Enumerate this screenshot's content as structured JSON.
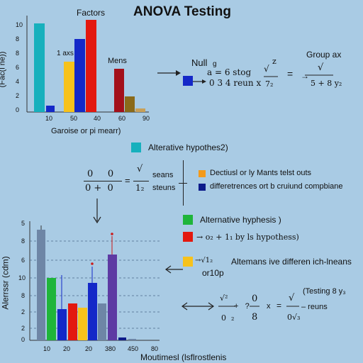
{
  "title": "ANOVA Testing",
  "colors": {
    "background": "#a9cbe4",
    "teal": "#17b0bd",
    "blue": "#1428c8",
    "navy": "#0d1b8a",
    "yellow": "#f7c21b",
    "red": "#e3180f",
    "dark_red": "#a3101a",
    "olive": "#8a6a1a",
    "green": "#1fb53a",
    "orange": "#f39a1b",
    "slate": "#6e86a6",
    "purple": "#5d3aa3",
    "navy_red": "#cc1a1a"
  },
  "top_chart": {
    "label_factors": "Factors",
    "label_axs": "1 axs",
    "label_mens": "Mens",
    "ylabel": "(Fac(l ne))",
    "xlabel": "Garoise or pi mearr)",
    "y_ticks": [
      "10",
      "8",
      "8",
      "6",
      "4",
      "2",
      "0"
    ],
    "x_ticks": [
      "10",
      "50",
      "40",
      "60",
      "90"
    ]
  },
  "top_right": {
    "null_label": "Null",
    "null_sub": "g",
    "group_label": "Group ax",
    "formula_left": "a  =  6  stog",
    "formula_left2": "0  3    4  reun  x",
    "frac_num": "z",
    "frac_den": "7₂",
    "right_num": "√",
    "right_den": "5  +  8  y₂",
    "arrow_eq": "="
  },
  "middle": {
    "alt_label": "Alterative hypothes2)",
    "frac_line1": "0     0",
    "frac_line2": "0 +  0",
    "eq": "=",
    "frac2_den": "1₂",
    "seans": "seans",
    "steuns": "steuns",
    "legend1": "Dectiusl or ly Mants telst outs",
    "legend2": "differetrences ort b cruiund compbiane"
  },
  "bottom_chart": {
    "ylabel": "Alerrssr (cdm)",
    "xlabel": "Moutimesl (lsflrostlenis",
    "y_ticks": [
      "5",
      "8",
      "6",
      "10",
      "8",
      "2",
      "2",
      "0"
    ],
    "x_ticks": [
      "10",
      "20",
      "20",
      "380",
      "450",
      "80"
    ]
  },
  "bottom_right": {
    "hyp_label": "Alternative hyphesis )",
    "arrow_text": "→  o₂  +  1₁ by  ls hypothess)",
    "alt_means": "Altemans  ive differen ich-lneans",
    "or10p": "or10p",
    "sqrt_small": "→√1₂",
    "testing": "(Testing 8 y₃",
    "eq_left_num": "√²",
    "eq_left_den": "0  ₂",
    "eq_plus": "+   ?",
    "eq_mid_num": "0",
    "eq_mid_den": "8",
    "eq_x": "x",
    "eq_equals": "=",
    "eq_right_num": "√",
    "eq_right_den": "0√₃",
    "eq_reuns": "– reuns"
  }
}
